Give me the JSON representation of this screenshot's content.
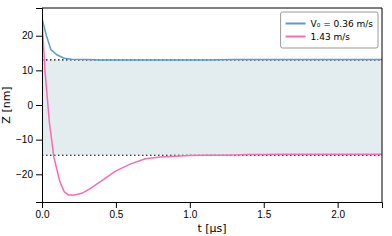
{
  "chart_data": {
    "type": "line",
    "xlabel": "t [μs]",
    "ylabel": "Z [nm]",
    "xlim": [
      0.0,
      2.3
    ],
    "ylim": [
      -28,
      28
    ],
    "xticks": [
      {
        "value": 0.0,
        "label": "0.0"
      },
      0.5,
      {
        "value": 1.0,
        "label": "1.0"
      },
      1.5,
      {
        "value": 2.0,
        "label": "2.0"
      }
    ],
    "yticks": [
      -20,
      -10,
      0,
      10,
      20
    ],
    "grid": false,
    "legend": "upper right",
    "bands": [
      {
        "from": -14.5,
        "to": 13.0,
        "color": "#c8dce0"
      }
    ],
    "hlines": [
      {
        "value": 13.0,
        "line_style": "dotted"
      },
      {
        "value": -14.5,
        "line_style": "dotted"
      }
    ],
    "series": [
      {
        "name": "V₀ = 0.36 m/s",
        "color": "#5B9BD5",
        "x": [
          0.0,
          0.03,
          0.06,
          0.1,
          0.15,
          0.2,
          0.3,
          0.4,
          0.5,
          0.7,
          0.9,
          1.1,
          1.3,
          1.5,
          1.7,
          1.9,
          2.1,
          2.3
        ],
        "values": [
          25.0,
          20.0,
          16.0,
          14.5,
          13.5,
          13.2,
          13.1,
          13.0,
          13.0,
          13.0,
          13.0,
          13.0,
          13.1,
          13.1,
          13.1,
          13.1,
          13.1,
          13.1
        ]
      },
      {
        "name": "1.43 m/s",
        "color": "#FF69B4",
        "x": [
          0.0,
          0.02,
          0.05,
          0.08,
          0.12,
          0.15,
          0.18,
          0.22,
          0.27,
          0.33,
          0.4,
          0.5,
          0.6,
          0.7,
          0.8,
          0.9,
          1.0,
          1.1,
          1.2,
          1.3,
          1.4,
          1.5,
          1.6,
          1.7,
          1.8,
          1.9,
          2.0,
          2.1,
          2.2,
          2.3
        ],
        "values": [
          25.0,
          10.0,
          -5.0,
          -15.0,
          -22.0,
          -25.0,
          -26.0,
          -26.0,
          -25.5,
          -24.0,
          -22.0,
          -19.0,
          -17.0,
          -15.5,
          -15.0,
          -14.8,
          -14.6,
          -14.5,
          -14.5,
          -14.4,
          -14.3,
          -14.3,
          -14.2,
          -14.2,
          -14.2,
          -14.2,
          -14.2,
          -14.2,
          -14.2,
          -14.2
        ]
      }
    ]
  }
}
